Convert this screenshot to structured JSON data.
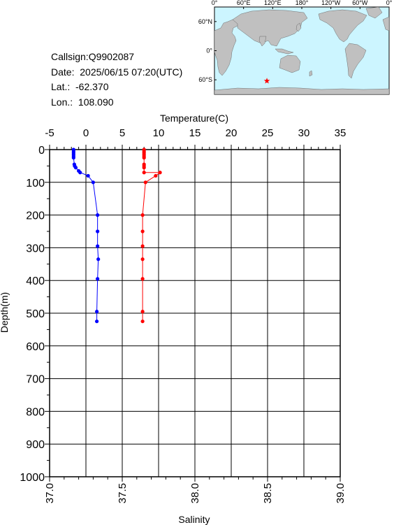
{
  "info": {
    "callsign": "Callsign:Q9902087",
    "date": "Date:  2025/06/15 07:20(UTC)",
    "lat": "Lat.:  -62.370",
    "lon": "Lon.:  108.090"
  },
  "map": {
    "lon_labels": [
      "0°",
      "60°E",
      "120°E",
      "180°",
      "120°W",
      "60°W",
      "0°"
    ],
    "lat_labels": [
      "60°N",
      "0°",
      "60°S"
    ],
    "marker_lon": 108.09,
    "marker_lat": -62.37,
    "marker_color": "#ff0000",
    "ocean_color": "#ccf5ff",
    "land_color": "#c0c0c0"
  },
  "chart_data": {
    "type": "line",
    "xlabel_top": "Temperature(C)",
    "xlabel_bottom": "Salinity",
    "ylabel": "Depth(m)",
    "temperature_axis": {
      "range": [
        -5,
        35
      ],
      "ticks": [
        "-5",
        "0",
        "5",
        "10",
        "15",
        "20",
        "25",
        "30",
        "35"
      ]
    },
    "salinity_axis": {
      "range": [
        37.0,
        39.0
      ],
      "ticks": [
        "37.0",
        "37.5",
        "38.0",
        "38.5",
        "39.0"
      ]
    },
    "depth_axis": {
      "range": [
        0,
        1000
      ],
      "inverted": true,
      "ticks": [
        "0",
        "100",
        "200",
        "300",
        "400",
        "500",
        "600",
        "700",
        "800",
        "900",
        "1000"
      ]
    },
    "grid": true,
    "series": [
      {
        "variable": "temperature",
        "color": "#0000ff",
        "points": [
          {
            "value": -1.7,
            "depth": 0
          },
          {
            "value": -1.7,
            "depth": 5
          },
          {
            "value": -1.7,
            "depth": 10
          },
          {
            "value": -1.7,
            "depth": 15
          },
          {
            "value": -1.7,
            "depth": 20
          },
          {
            "value": -1.7,
            "depth": 25
          },
          {
            "value": -1.6,
            "depth": 45
          },
          {
            "value": -1.55,
            "depth": 50
          },
          {
            "value": -1.4,
            "depth": 55
          },
          {
            "value": -1.0,
            "depth": 65
          },
          {
            "value": -0.8,
            "depth": 70
          },
          {
            "value": 0.3,
            "depth": 80
          },
          {
            "value": 1.0,
            "depth": 100
          },
          {
            "value": 1.6,
            "depth": 200
          },
          {
            "value": 1.6,
            "depth": 250
          },
          {
            "value": 1.6,
            "depth": 295
          },
          {
            "value": 1.7,
            "depth": 335
          },
          {
            "value": 1.6,
            "depth": 395
          },
          {
            "value": 1.5,
            "depth": 495
          },
          {
            "value": 1.5,
            "depth": 525
          }
        ]
      },
      {
        "variable": "salinity",
        "color": "#ff0000",
        "points": [
          {
            "value": 37.65,
            "depth": 0
          },
          {
            "value": 37.65,
            "depth": 5
          },
          {
            "value": 37.65,
            "depth": 10
          },
          {
            "value": 37.65,
            "depth": 15
          },
          {
            "value": 37.65,
            "depth": 20
          },
          {
            "value": 37.65,
            "depth": 25
          },
          {
            "value": 37.65,
            "depth": 45
          },
          {
            "value": 37.65,
            "depth": 50
          },
          {
            "value": 37.65,
            "depth": 55
          },
          {
            "value": 37.65,
            "depth": 70
          },
          {
            "value": 37.76,
            "depth": 70
          },
          {
            "value": 37.73,
            "depth": 80
          },
          {
            "value": 37.66,
            "depth": 100
          },
          {
            "value": 37.64,
            "depth": 200
          },
          {
            "value": 37.64,
            "depth": 250
          },
          {
            "value": 37.64,
            "depth": 295
          },
          {
            "value": 37.64,
            "depth": 335
          },
          {
            "value": 37.64,
            "depth": 395
          },
          {
            "value": 37.64,
            "depth": 495
          },
          {
            "value": 37.64,
            "depth": 525
          }
        ]
      }
    ]
  }
}
